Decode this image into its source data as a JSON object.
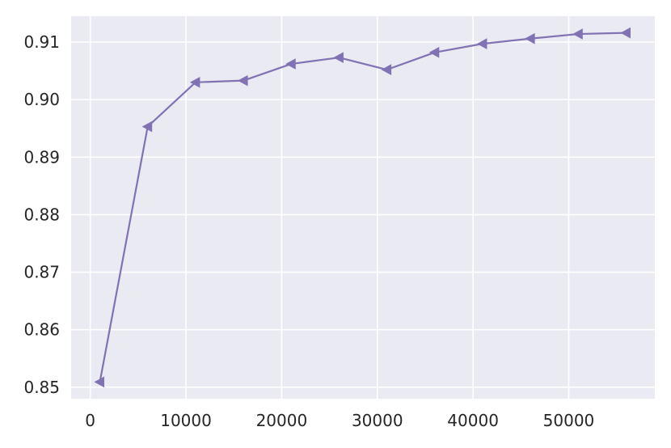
{
  "chart_data": {
    "type": "line",
    "title": "",
    "xlabel": "",
    "ylabel": "",
    "xlim": [
      -2000,
      59000
    ],
    "ylim": [
      0.848,
      0.9145
    ],
    "x_ticks": [
      0,
      10000,
      20000,
      30000,
      40000,
      50000
    ],
    "y_ticks": [
      0.85,
      0.86,
      0.87,
      0.88,
      0.89,
      0.9,
      0.91
    ],
    "x_tick_labels": [
      "0",
      "10000",
      "20000",
      "30000",
      "40000",
      "50000"
    ],
    "y_tick_labels": [
      "0.85",
      "0.86",
      "0.87",
      "0.88",
      "0.89",
      "0.90",
      "0.91"
    ],
    "grid": true,
    "background": "#eaeaf2",
    "series": [
      {
        "color": "#8172b3",
        "marker": "triangle-left",
        "x": [
          1000,
          6000,
          11000,
          16000,
          21000,
          26000,
          31000,
          36000,
          41000,
          46000,
          51000,
          56000
        ],
        "y": [
          0.8509,
          0.8953,
          0.903,
          0.9033,
          0.9062,
          0.9073,
          0.9052,
          0.9082,
          0.9097,
          0.9106,
          0.9114,
          0.9116
        ]
      }
    ]
  }
}
